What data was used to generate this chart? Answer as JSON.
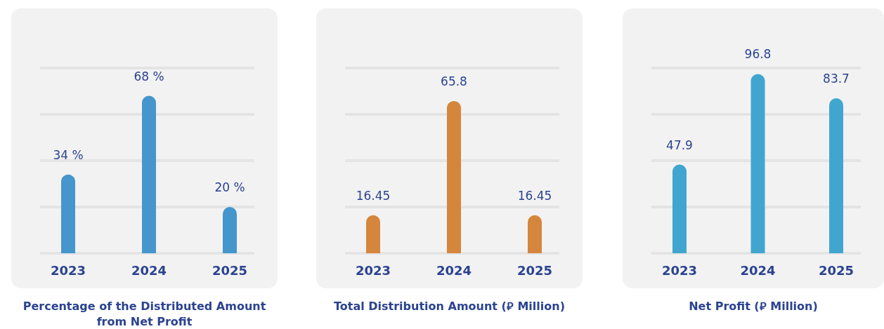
{
  "chart_data": [
    {
      "type": "bar",
      "title": "Percentage of the Distributed Amount from Net Profit",
      "categories": [
        "2023",
        "2024",
        "2025"
      ],
      "values": [
        34,
        68,
        20
      ],
      "value_labels": [
        "34 %",
        "68 %",
        "20 %"
      ],
      "color": "#4496cc",
      "ylim": [
        0,
        80
      ],
      "yticks": [
        {
          "value": 0,
          "label": null
        },
        {
          "value": 20,
          "label": null
        },
        {
          "value": 40,
          "label": null
        },
        {
          "value": 60,
          "label": null
        },
        {
          "value": 80,
          "label": null
        }
      ],
      "grid": "y",
      "tick_labels": "x"
    },
    {
      "type": "bar",
      "title": "Total Distribution Amount (⃁ Million)",
      "categories": [
        "2023",
        "2024",
        "2025"
      ],
      "values": [
        16.45,
        65.8,
        16.45
      ],
      "data_labels": true,
      "color": "#d4863c",
      "ylim": [
        0,
        80
      ],
      "yticks": [
        {
          "value": 0,
          "label": null
        },
        {
          "value": 20,
          "label": null
        },
        {
          "value": 40,
          "label": null
        },
        {
          "value": 60,
          "label": null
        },
        {
          "value": 80,
          "label": null
        }
      ],
      "grid": "y",
      "tick_labels": "x"
    },
    {
      "type": "bar",
      "title": "Net Profit (⃁ Million)",
      "categories": [
        "2023",
        "2024",
        "2025"
      ],
      "values": [
        47.9,
        96.8,
        83.7
      ],
      "data_labels": true,
      "color": "#40a6d0",
      "ylim": [
        0,
        100
      ],
      "yticks": [
        {
          "value": 0,
          "label": null
        },
        {
          "value": 25,
          "label": null
        },
        {
          "value": 50,
          "label": null
        },
        {
          "value": 75,
          "label": null
        },
        {
          "value": 100,
          "label": null
        }
      ],
      "grid": "y",
      "tick_labels": "x"
    }
  ]
}
